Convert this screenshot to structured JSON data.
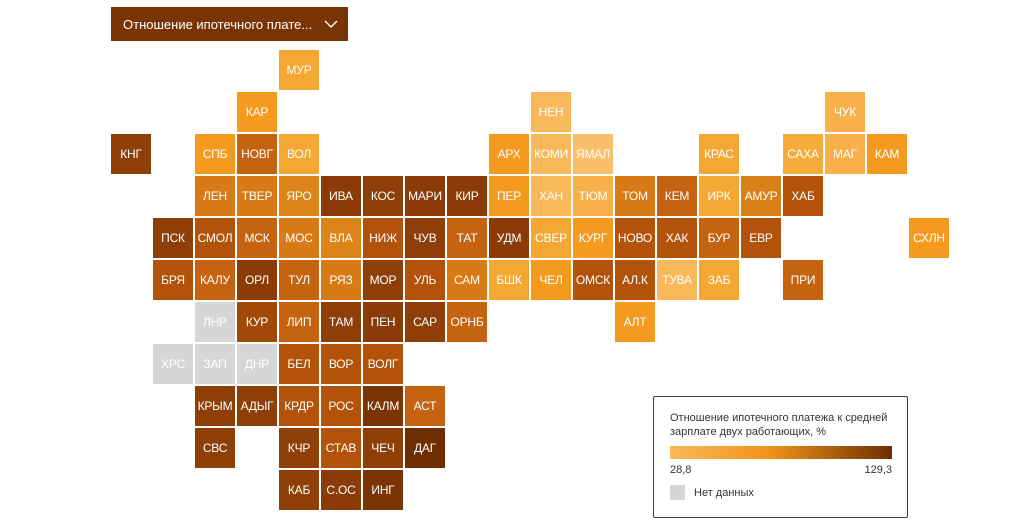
{
  "dropdown": {
    "label": "Отношение ипотечного плате..."
  },
  "legend": {
    "title": "Отношение ипотечного платежа к средней зарплате двух работающих, %",
    "min_label": "28,8",
    "max_label": "129,3",
    "no_data_label": "Нет данных"
  },
  "colors": {
    "dropdown_bg": "#7a3403",
    "scale_low": "#f9b85a",
    "scale_mid": "#f0931a",
    "scale_high": "#6e2e02",
    "no_data": "#d6d6d6"
  },
  "regions": [
    {
      "code": "МУР",
      "row": 0,
      "col": 4,
      "fill": "#f5a733"
    },
    {
      "code": "КАР",
      "row": 1,
      "col": 3,
      "fill": "#f49a1e"
    },
    {
      "code": "НЕН",
      "row": 1,
      "col": 10,
      "fill": "#f9b85a"
    },
    {
      "code": "ЧУК",
      "row": 1,
      "col": 17,
      "fill": "#f7b04a"
    },
    {
      "code": "КНГ",
      "row": 2,
      "col": 0,
      "fill": "#8d3f07"
    },
    {
      "code": "СПБ",
      "row": 2,
      "col": 2,
      "fill": "#f49a1e"
    },
    {
      "code": "НОВГ",
      "row": 2,
      "col": 3,
      "fill": "#c56310"
    },
    {
      "code": "ВОЛ",
      "row": 2,
      "col": 4,
      "fill": "#f5a733"
    },
    {
      "code": "АРХ",
      "row": 2,
      "col": 9,
      "fill": "#f49a1e"
    },
    {
      "code": "КОМИ",
      "row": 2,
      "col": 10,
      "fill": "#f9b85a"
    },
    {
      "code": "ЯМАЛ",
      "row": 2,
      "col": 11,
      "fill": "#fabf6b"
    },
    {
      "code": "КРАС",
      "row": 2,
      "col": 14,
      "fill": "#f5a733"
    },
    {
      "code": "САХА",
      "row": 2,
      "col": 16,
      "fill": "#f6ab3b"
    },
    {
      "code": "МАГ",
      "row": 2,
      "col": 17,
      "fill": "#f7b04a"
    },
    {
      "code": "КАМ",
      "row": 2,
      "col": 18,
      "fill": "#f49a1e"
    },
    {
      "code": "ЛЕН",
      "row": 3,
      "col": 2,
      "fill": "#d87b16"
    },
    {
      "code": "ТВЕР",
      "row": 3,
      "col": 3,
      "fill": "#d87b16"
    },
    {
      "code": "ЯРО",
      "row": 3,
      "col": 4,
      "fill": "#dc8418"
    },
    {
      "code": "ИВА",
      "row": 3,
      "col": 5,
      "fill": "#8b3c06"
    },
    {
      "code": "КОС",
      "row": 3,
      "col": 6,
      "fill": "#8d3f07"
    },
    {
      "code": "МАРИ",
      "row": 3,
      "col": 7,
      "fill": "#8b3c06"
    },
    {
      "code": "КИР",
      "row": 3,
      "col": 8,
      "fill": "#8b3c06"
    },
    {
      "code": "ПЕР",
      "row": 3,
      "col": 9,
      "fill": "#f49a1e"
    },
    {
      "code": "ХАН",
      "row": 3,
      "col": 10,
      "fill": "#f9b85a"
    },
    {
      "code": "ТЮМ",
      "row": 3,
      "col": 11,
      "fill": "#f7b04a"
    },
    {
      "code": "ТОМ",
      "row": 3,
      "col": 12,
      "fill": "#d87b16"
    },
    {
      "code": "КЕМ",
      "row": 3,
      "col": 13,
      "fill": "#c56310"
    },
    {
      "code": "ИРК",
      "row": 3,
      "col": 14,
      "fill": "#f5a733"
    },
    {
      "code": "АМУР",
      "row": 3,
      "col": 15,
      "fill": "#d98018"
    },
    {
      "code": "ХАБ",
      "row": 3,
      "col": 16,
      "fill": "#b25309"
    },
    {
      "code": "ПСК",
      "row": 4,
      "col": 1,
      "fill": "#8d3f07"
    },
    {
      "code": "СМОЛ",
      "row": 4,
      "col": 2,
      "fill": "#b25309"
    },
    {
      "code": "МСК",
      "row": 4,
      "col": 3,
      "fill": "#c56310"
    },
    {
      "code": "МОС",
      "row": 4,
      "col": 4,
      "fill": "#d87b16"
    },
    {
      "code": "ВЛА",
      "row": 4,
      "col": 5,
      "fill": "#dc8418"
    },
    {
      "code": "НИЖ",
      "row": 4,
      "col": 6,
      "fill": "#b25309"
    },
    {
      "code": "ЧУВ",
      "row": 4,
      "col": 7,
      "fill": "#8d3f07"
    },
    {
      "code": "ТАТ",
      "row": 4,
      "col": 8,
      "fill": "#c56310"
    },
    {
      "code": "УДМ",
      "row": 4,
      "col": 9,
      "fill": "#8b3c06"
    },
    {
      "code": "СВЕР",
      "row": 4,
      "col": 10,
      "fill": "#f5a733"
    },
    {
      "code": "КУРГ",
      "row": 4,
      "col": 11,
      "fill": "#f49a1e"
    },
    {
      "code": "НОВО",
      "row": 4,
      "col": 12,
      "fill": "#b25309"
    },
    {
      "code": "ХАК",
      "row": 4,
      "col": 13,
      "fill": "#b25309"
    },
    {
      "code": "БУР",
      "row": 4,
      "col": 14,
      "fill": "#c56310"
    },
    {
      "code": "ЕВР",
      "row": 4,
      "col": 15,
      "fill": "#b25309"
    },
    {
      "code": "СХЛН",
      "row": 4,
      "col": 19,
      "fill": "#f49a1e"
    },
    {
      "code": "БРЯ",
      "row": 5,
      "col": 1,
      "fill": "#b25309"
    },
    {
      "code": "КАЛУ",
      "row": 5,
      "col": 2,
      "fill": "#c56310"
    },
    {
      "code": "ОРЛ",
      "row": 5,
      "col": 3,
      "fill": "#8b3c06"
    },
    {
      "code": "ТУЛ",
      "row": 5,
      "col": 4,
      "fill": "#c56310"
    },
    {
      "code": "РЯЗ",
      "row": 5,
      "col": 5,
      "fill": "#d87b16"
    },
    {
      "code": "МОР",
      "row": 5,
      "col": 6,
      "fill": "#8d3f07"
    },
    {
      "code": "УЛЬ",
      "row": 5,
      "col": 7,
      "fill": "#b25309"
    },
    {
      "code": "САМ",
      "row": 5,
      "col": 8,
      "fill": "#d87b16"
    },
    {
      "code": "БШК",
      "row": 5,
      "col": 9,
      "fill": "#f5a733"
    },
    {
      "code": "ЧЕЛ",
      "row": 5,
      "col": 10,
      "fill": "#f49a1e"
    },
    {
      "code": "ОМСК",
      "row": 5,
      "col": 11,
      "fill": "#b25309"
    },
    {
      "code": "АЛ.К",
      "row": 5,
      "col": 12,
      "fill": "#b25309"
    },
    {
      "code": "ТУВА",
      "row": 5,
      "col": 13,
      "fill": "#f9b85a"
    },
    {
      "code": "ЗАБ",
      "row": 5,
      "col": 14,
      "fill": "#f5a733"
    },
    {
      "code": "ПРИ",
      "row": 5,
      "col": 16,
      "fill": "#c56310"
    },
    {
      "code": "ЛНР",
      "row": 6,
      "col": 2,
      "fill": "#d6d6d6"
    },
    {
      "code": "КУР",
      "row": 6,
      "col": 3,
      "fill": "#a14a08"
    },
    {
      "code": "ЛИП",
      "row": 6,
      "col": 4,
      "fill": "#c56310"
    },
    {
      "code": "ТАМ",
      "row": 6,
      "col": 5,
      "fill": "#8d3f07"
    },
    {
      "code": "ПЕН",
      "row": 6,
      "col": 6,
      "fill": "#8b3c06"
    },
    {
      "code": "САР",
      "row": 6,
      "col": 7,
      "fill": "#8d3f07"
    },
    {
      "code": "ОРНБ",
      "row": 6,
      "col": 8,
      "fill": "#c56310"
    },
    {
      "code": "АЛТ",
      "row": 6,
      "col": 12,
      "fill": "#f49a1e"
    },
    {
      "code": "ХРС",
      "row": 7,
      "col": 1,
      "fill": "#d6d6d6"
    },
    {
      "code": "ЗАП",
      "row": 7,
      "col": 2,
      "fill": "#d6d6d6"
    },
    {
      "code": "ДНР",
      "row": 7,
      "col": 3,
      "fill": "#d6d6d6"
    },
    {
      "code": "БЕЛ",
      "row": 7,
      "col": 4,
      "fill": "#b25309"
    },
    {
      "code": "ВОР",
      "row": 7,
      "col": 5,
      "fill": "#b25309"
    },
    {
      "code": "ВОЛГ",
      "row": 7,
      "col": 6,
      "fill": "#b25309"
    },
    {
      "code": "КРЫМ",
      "row": 8,
      "col": 2,
      "fill": "#8d3f07"
    },
    {
      "code": "АДЫГ",
      "row": 8,
      "col": 3,
      "fill": "#8d3f07"
    },
    {
      "code": "КРДР",
      "row": 8,
      "col": 4,
      "fill": "#b25309"
    },
    {
      "code": "РОС",
      "row": 8,
      "col": 5,
      "fill": "#b25309"
    },
    {
      "code": "КАЛМ",
      "row": 8,
      "col": 6,
      "fill": "#7a3403"
    },
    {
      "code": "АСТ",
      "row": 8,
      "col": 7,
      "fill": "#c56310"
    },
    {
      "code": "СВС",
      "row": 9,
      "col": 2,
      "fill": "#8d3f07"
    },
    {
      "code": "КЧР",
      "row": 9,
      "col": 4,
      "fill": "#8d3f07"
    },
    {
      "code": "СТАВ",
      "row": 9,
      "col": 5,
      "fill": "#b25309"
    },
    {
      "code": "ЧЕЧ",
      "row": 9,
      "col": 6,
      "fill": "#8d3f07"
    },
    {
      "code": "ДАГ",
      "row": 9,
      "col": 7,
      "fill": "#6e2e02"
    },
    {
      "code": "КАБ",
      "row": 10,
      "col": 4,
      "fill": "#8d3f07"
    },
    {
      "code": "С.ОС",
      "row": 10,
      "col": 5,
      "fill": "#8b3c06"
    },
    {
      "code": "ИНГ",
      "row": 10,
      "col": 6,
      "fill": "#7a3403"
    }
  ]
}
